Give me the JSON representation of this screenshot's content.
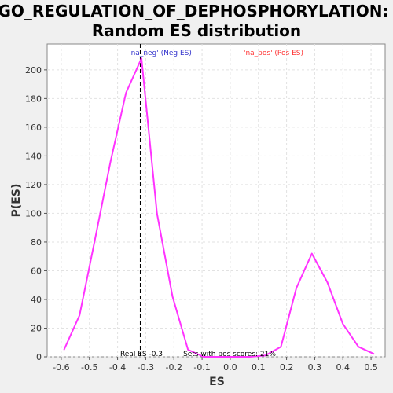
{
  "chart_data": {
    "type": "line",
    "title_line1": "GO_REGULATION_OF_DEPHOSPHORYLATION:",
    "title_line2": "Random ES distribution",
    "xlabel": "ES",
    "ylabel": "P(ES)",
    "xlim": [
      -0.65,
      0.55
    ],
    "ylim": [
      0,
      218
    ],
    "x_ticks": [
      "-0.6",
      "-0.5",
      "-0.4",
      "-0.3",
      "-0.2",
      "-0.1",
      "0.0",
      "0.1",
      "0.2",
      "0.3",
      "0.4",
      "0.5"
    ],
    "y_ticks": [
      "0",
      "20",
      "40",
      "60",
      "80",
      "100",
      "120",
      "140",
      "160",
      "180",
      "200"
    ],
    "grid": true,
    "series": [
      {
        "color": "#ff33ff",
        "x": [
          -0.59,
          -0.535,
          -0.48,
          -0.425,
          -0.37,
          -0.315,
          -0.26,
          -0.205,
          -0.15,
          -0.095,
          -0.04,
          0.015,
          0.07,
          0.125,
          0.18,
          0.235,
          0.29,
          0.345,
          0.4,
          0.455,
          0.51
        ],
        "y": [
          5,
          29,
          82,
          136,
          184,
          208,
          100,
          42,
          5,
          0,
          0,
          0,
          0,
          1,
          7,
          48,
          72,
          52,
          23,
          7,
          2
        ]
      }
    ],
    "real_es": {
      "value": -0.318,
      "text": "Real ES -0.3",
      "color": "#000000"
    },
    "annotations": {
      "neg_label": "'na_neg' (Neg ES)",
      "neg_color": "#3333cc",
      "pos_label": "'na_pos' (Pos ES)",
      "pos_color": "#ff3333",
      "pos_scores_text": "Sets with pos scores: 21%"
    }
  }
}
